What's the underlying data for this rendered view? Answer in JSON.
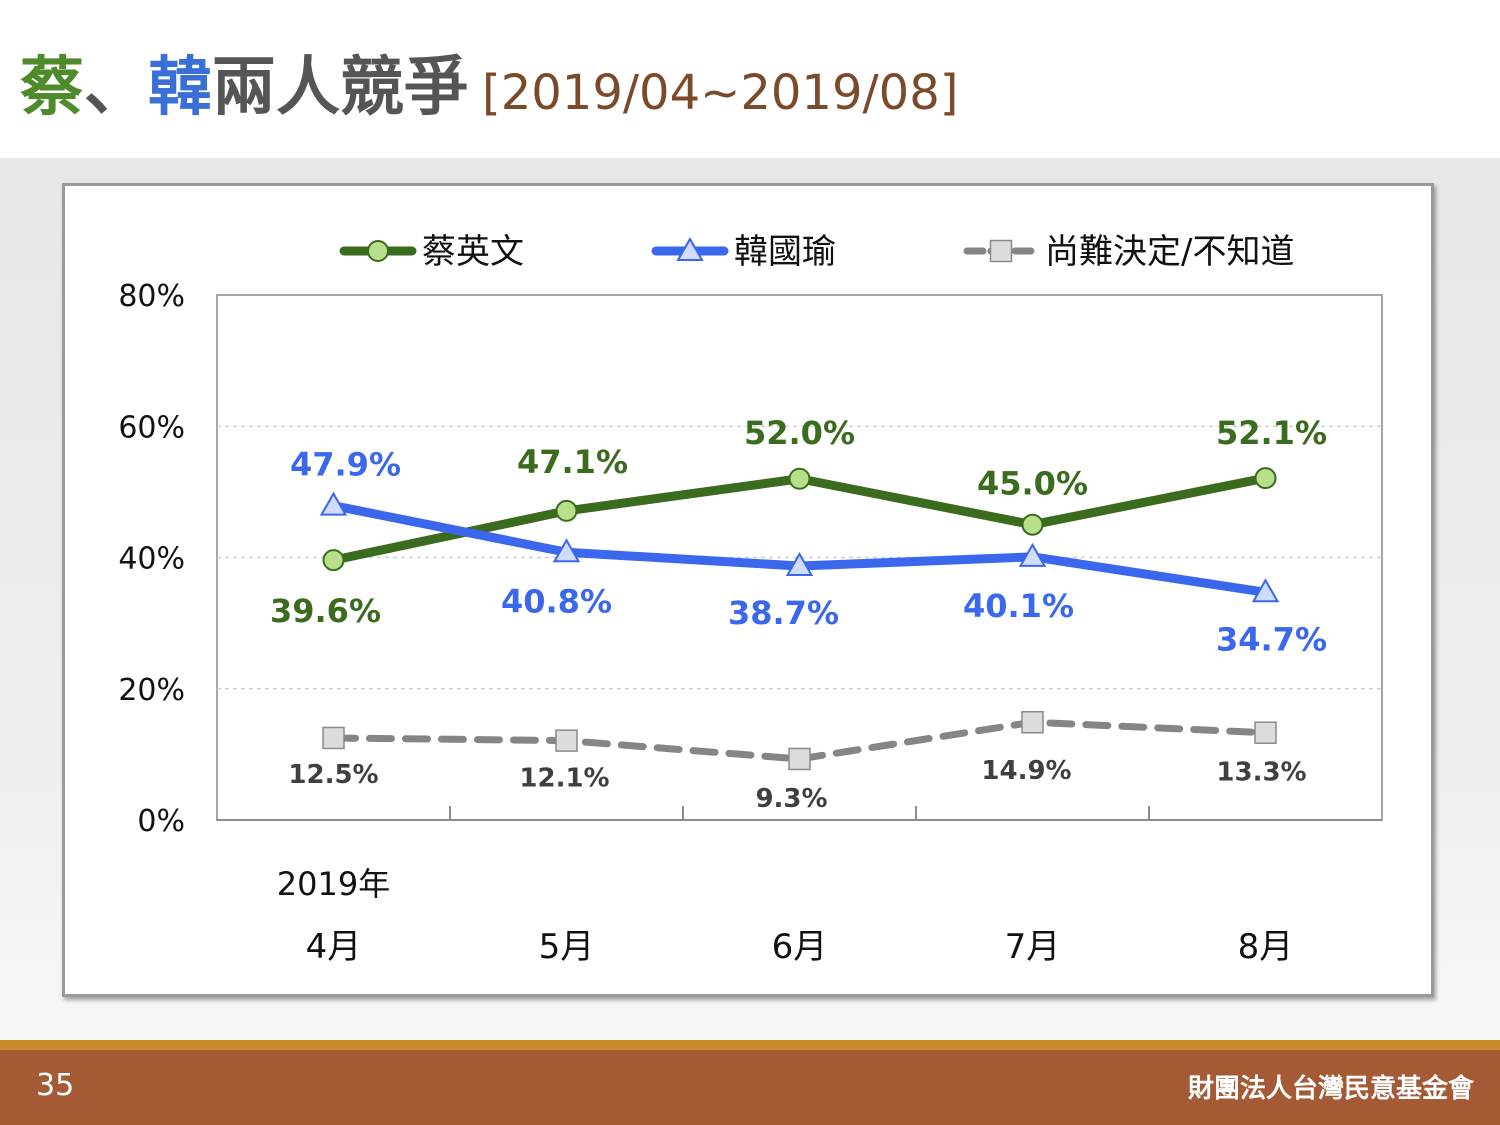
{
  "slide": {
    "title_part1": "蔡",
    "title_sep": "、",
    "title_part2": "韓",
    "title_part3": "兩人競爭",
    "title_range": "[2019/04~2019/08]",
    "page_number": "35",
    "organization": "財團法人台灣民意基金會"
  },
  "chart_data": {
    "type": "line",
    "title": "",
    "categories": [
      "4月",
      "5月",
      "6月",
      "7月",
      "8月"
    ],
    "x_group_label": "2019年",
    "ylim": [
      0,
      80
    ],
    "y_ticks": [
      "0%",
      "20%",
      "40%",
      "60%",
      "80%"
    ],
    "grid": true,
    "legend_position": "top",
    "series": [
      {
        "name": "蔡英文",
        "values": [
          39.6,
          47.1,
          52.0,
          45.0,
          52.1
        ],
        "labels": [
          "39.6%",
          "47.1%",
          "52.0%",
          "45.0%",
          "52.1%"
        ],
        "color": "#3a6b1e",
        "marker_color": "#b8e08a",
        "marker": "circle",
        "dash": "solid"
      },
      {
        "name": "韓國瑜",
        "values": [
          47.9,
          40.8,
          38.7,
          40.1,
          34.7
        ],
        "labels": [
          "47.9%",
          "40.8%",
          "38.7%",
          "40.1%",
          "34.7%"
        ],
        "color": "#3a67ec",
        "marker_color": "#cfdcfb",
        "marker": "triangle",
        "dash": "solid"
      },
      {
        "name": "尚難決定/不知道",
        "values": [
          12.5,
          12.1,
          9.3,
          14.9,
          13.3
        ],
        "labels": [
          "12.5%",
          "12.1%",
          "9.3%",
          "14.9%",
          "13.3%"
        ],
        "color": "#858585",
        "marker_color": "#dcdcdc",
        "marker": "square",
        "dash": "dashed"
      }
    ]
  }
}
